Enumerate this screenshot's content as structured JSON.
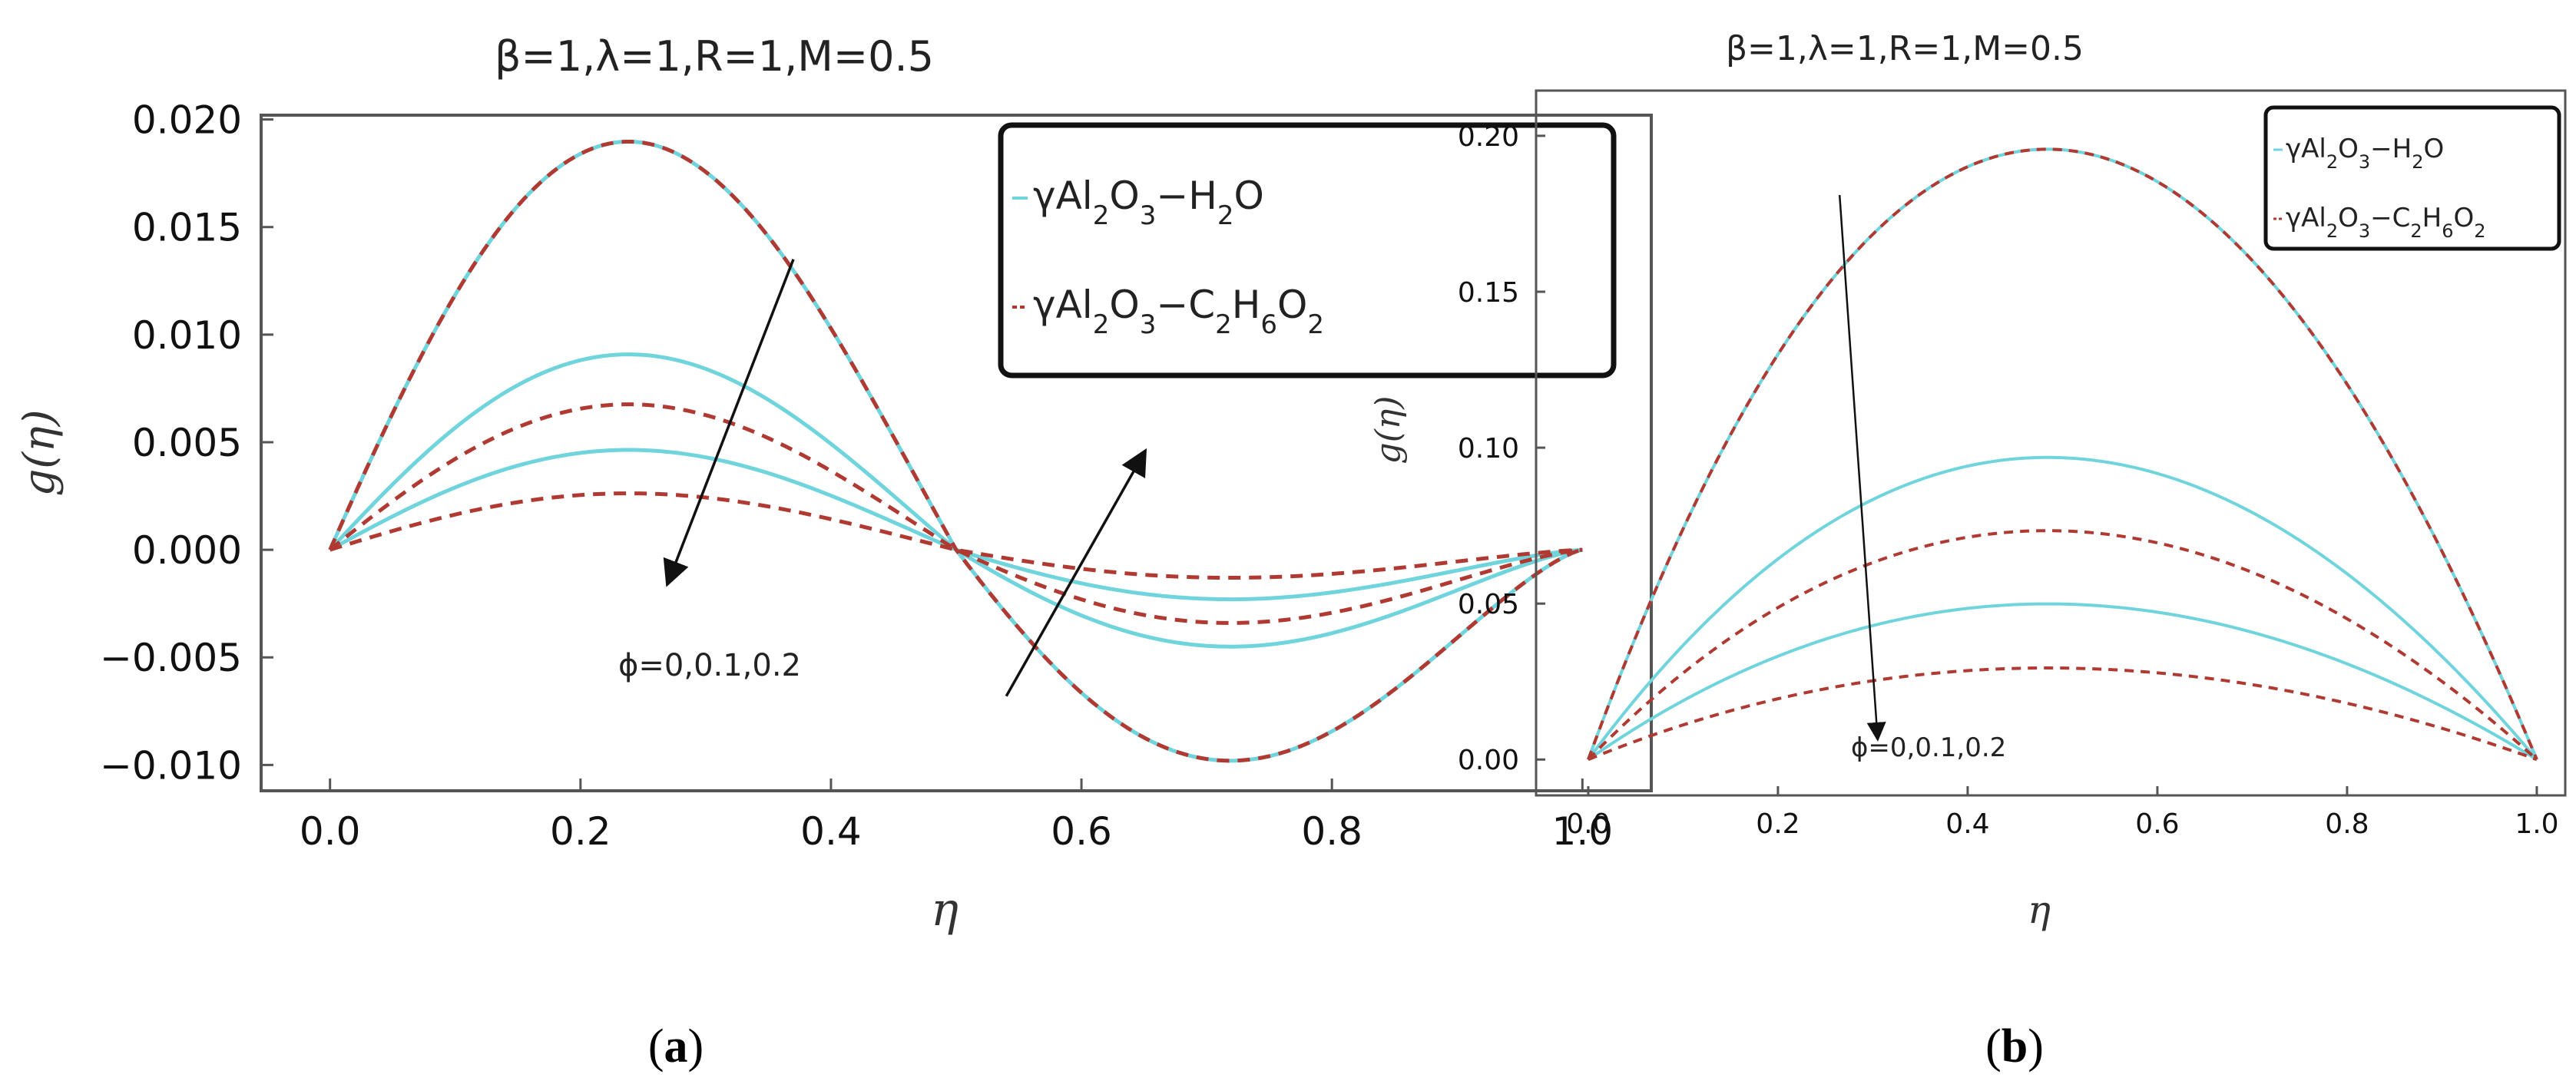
{
  "chart_data": [
    {
      "id": "a",
      "type": "line",
      "title": "β=1,λ=1,R=1,M=0.5",
      "xlabel": "η",
      "ylabel": "g(η)",
      "xlim": [
        0,
        1
      ],
      "ylim": [
        -0.011,
        0.02
      ],
      "xticks": [
        0.0,
        0.2,
        0.4,
        0.6,
        0.8,
        1.0
      ],
      "xtick_labels": [
        "0.0",
        "0.2",
        "0.4",
        "0.6",
        "0.8",
        "1.0"
      ],
      "yticks": [
        0.02,
        0.015,
        0.01,
        0.005,
        0.0,
        -0.005,
        -0.01
      ],
      "ytick_labels": [
        "0.020",
        "0.015",
        "0.010",
        "0.005",
        "0.000",
        "−0.005",
        "−0.010"
      ],
      "legend": {
        "position": "top-right",
        "entries": [
          {
            "pre": "γAl",
            "s1": "2",
            "mid1": "O",
            "s2": "3",
            "mid2": "−H",
            "s3": "2",
            "post": "O",
            "s4": "",
            "tail": "",
            "style": "solid",
            "color": "#6fd4dc"
          },
          {
            "pre": "γAl",
            "s1": "2",
            "mid1": "O",
            "s2": "3",
            "mid2": "−C",
            "s3": "2",
            "post": "H",
            "s4": "6",
            "tail": "O₂",
            "style": "dashed",
            "color": "#b03a32"
          }
        ]
      },
      "annotation": "ϕ=0,0.1,0.2",
      "series_shape": "sin(2πη)·(1−η)^0.5 type oscillation",
      "series": [
        {
          "name": "γAl2O3−H2O ϕ=0",
          "style": "solid",
          "color": "#6fd4dc",
          "peak": 0.0188,
          "trough": -0.0098
        },
        {
          "name": "γAl2O3−C2H6O2 ϕ=0",
          "style": "dashed",
          "color": "#b03a32",
          "peak": 0.0188,
          "trough": -0.0098
        },
        {
          "name": "γAl2O3−H2O ϕ=0.1",
          "style": "solid",
          "color": "#6fd4dc",
          "peak": 0.009,
          "trough": -0.0045
        },
        {
          "name": "γAl2O3−C2H6O2 ϕ=0.1",
          "style": "dashed",
          "color": "#b03a32",
          "peak": 0.0067,
          "trough": -0.0034
        },
        {
          "name": "γAl2O3−H2O ϕ=0.2",
          "style": "solid",
          "color": "#6fd4dc",
          "peak": 0.0046,
          "trough": -0.0023
        },
        {
          "name": "γAl2O3−C2H6O2 ϕ=0.2",
          "style": "dashed",
          "color": "#b03a32",
          "peak": 0.0026,
          "trough": -0.0013
        }
      ],
      "arrows": [
        {
          "from": [
            0.37,
            0.0135
          ],
          "to": [
            0.27,
            -0.0015
          ]
        },
        {
          "from": [
            0.54,
            -0.0068
          ],
          "to": [
            0.65,
            0.0045
          ]
        }
      ]
    },
    {
      "id": "b",
      "type": "line",
      "title": "β=1,λ=1,R=1,M=0.5",
      "xlabel": "η",
      "ylabel": "g(η)",
      "xlim": [
        0,
        1
      ],
      "ylim": [
        -0.012,
        0.21
      ],
      "xticks": [
        0.0,
        0.2,
        0.4,
        0.6,
        0.8,
        1.0
      ],
      "xtick_labels": [
        "0.0",
        "0.2",
        "0.4",
        "0.6",
        "0.8",
        "1.0"
      ],
      "yticks": [
        0.2,
        0.15,
        0.1,
        0.05,
        0.0
      ],
      "ytick_labels": [
        "0.20",
        "0.15",
        "0.10",
        "0.05",
        "0.00"
      ],
      "legend": {
        "position": "top-right",
        "entries": [
          {
            "pre": "γAl",
            "s1": "2",
            "mid1": "O",
            "s2": "3",
            "mid2": "−H",
            "s3": "2",
            "post": "O",
            "s4": "",
            "tail": "",
            "style": "solid",
            "color": "#6fd4dc"
          },
          {
            "pre": "γAl",
            "s1": "2",
            "mid1": "O",
            "s2": "3",
            "mid2": "−C",
            "s3": "2",
            "post": "H",
            "s4": "6",
            "tail": "O₂",
            "style": "dashed",
            "color": "#b03a32"
          }
        ]
      },
      "annotation": "ϕ=0,0.1,0.2",
      "series_shape": "parabolic arch peaking near η≈0.47",
      "series": [
        {
          "name": "γAl2O3−H2O ϕ=0",
          "style": "solid",
          "color": "#6fd4dc",
          "peak": 0.2
        },
        {
          "name": "γAl2O3−C2H6O2 ϕ=0",
          "style": "dashed",
          "color": "#b03a32",
          "peak": 0.2
        },
        {
          "name": "γAl2O3−H2O ϕ=0.1",
          "style": "solid",
          "color": "#6fd4dc",
          "peak": 0.099
        },
        {
          "name": "γAl2O3−C2H6O2 ϕ=0.1",
          "style": "dashed",
          "color": "#b03a32",
          "peak": 0.075
        },
        {
          "name": "γAl2O3−H2O ϕ=0.2",
          "style": "solid",
          "color": "#6fd4dc",
          "peak": 0.051
        },
        {
          "name": "γAl2O3−C2H6O2 ϕ=0.2",
          "style": "dashed",
          "color": "#b03a32",
          "peak": 0.03
        }
      ],
      "arrows": [
        {
          "from": [
            0.265,
            0.181
          ],
          "to": [
            0.305,
            0.007
          ]
        }
      ]
    }
  ],
  "captions": {
    "a": {
      "open": "(",
      "letter": "a",
      "close": ")"
    },
    "b": {
      "open": "(",
      "letter": "b",
      "close": ")"
    }
  }
}
